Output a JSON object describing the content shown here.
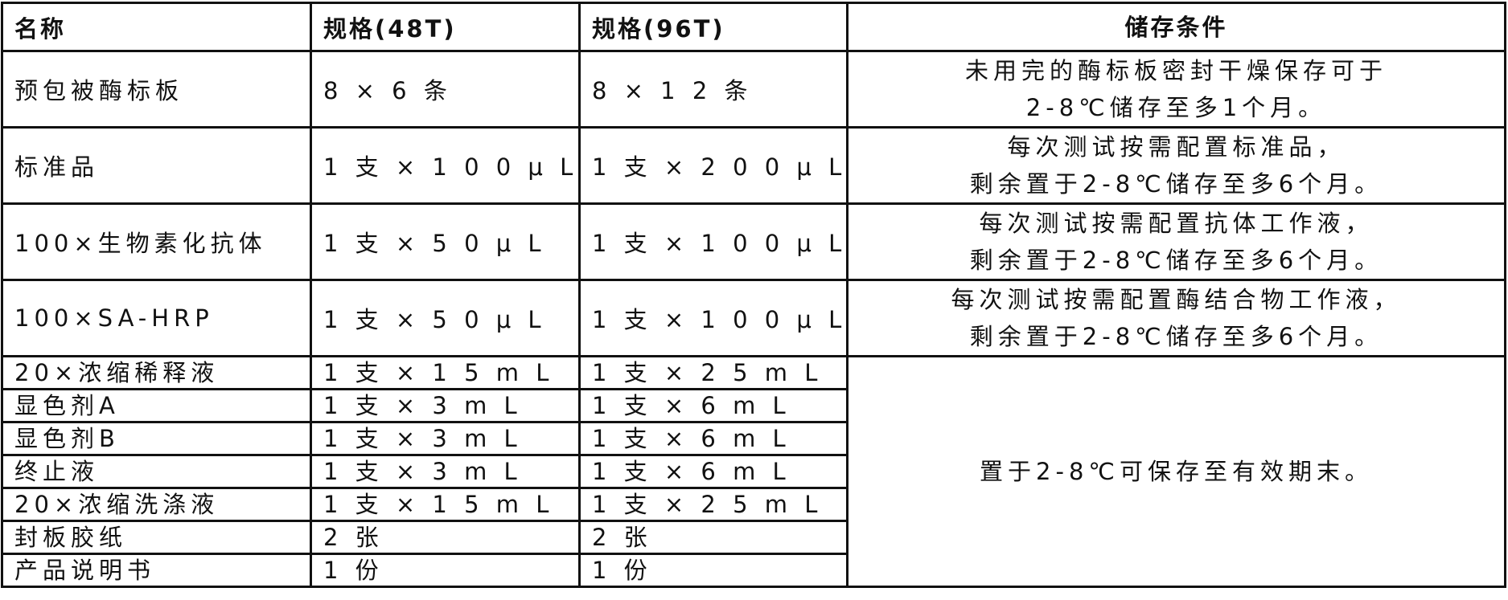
{
  "headers": [
    "名称",
    "规格(48T)",
    "规格(96T)",
    "储存条件"
  ],
  "rows": [
    {
      "name": "预包被酶标板",
      "spec48": "8 × 6 条",
      "spec96": "8 × 1 2 条",
      "storage": [
        "未用完的酶标板密封干燥保存可于",
        "2-8℃储存至多1个月。"
      ]
    },
    {
      "name": "标准品",
      "spec48": "1 支 × 1 0 0 μ L",
      "spec96": "1 支 × 2 0 0 μ L",
      "storage": [
        "每次测试按需配置标准品，",
        "剩余置于2-8℃储存至多6个月。"
      ]
    },
    {
      "name": "100×生物素化抗体",
      "spec48": "1 支 × 5 0 μ L",
      "spec96": "1 支 × 1 0 0 μ L",
      "storage": [
        "每次测试按需配置抗体工作液，",
        "剩余置于2-8℃储存至多6个月。"
      ]
    },
    {
      "name": "100×SA-HRP",
      "spec48": "1 支 × 5 0 μ L",
      "spec96": "1 支 × 1 0 0 μ L",
      "storage": [
        "每次测试按需配置酶结合物工作液，",
        "剩余置于2-8℃储存至多6个月。"
      ]
    },
    {
      "name": "20×浓缩稀释液",
      "spec48": "1 支 × 1 5 m L",
      "spec96": "1 支 × 2 5 m L"
    },
    {
      "name": "显色剂A",
      "spec48": "1 支 × 3 m L",
      "spec96": "1 支 × 6 m L"
    },
    {
      "name": "显色剂B",
      "spec48": "1 支 × 3 m L",
      "spec96": "1 支 × 6 m L"
    },
    {
      "name": "终止液",
      "spec48": "1 支 × 3 m L",
      "spec96": "1 支 × 6 m L"
    },
    {
      "name": "20×浓缩洗涤液",
      "spec48": "1 支 × 1 5 m L",
      "spec96": "1 支 × 2 5 m L"
    },
    {
      "name": "封板胶纸",
      "spec48": "2 张",
      "spec96": "2 张"
    },
    {
      "name": "产品说明书",
      "spec48": "1 份",
      "spec96": "1 份"
    }
  ],
  "shared_storage": "置于2-8℃可保存至有效期末。"
}
